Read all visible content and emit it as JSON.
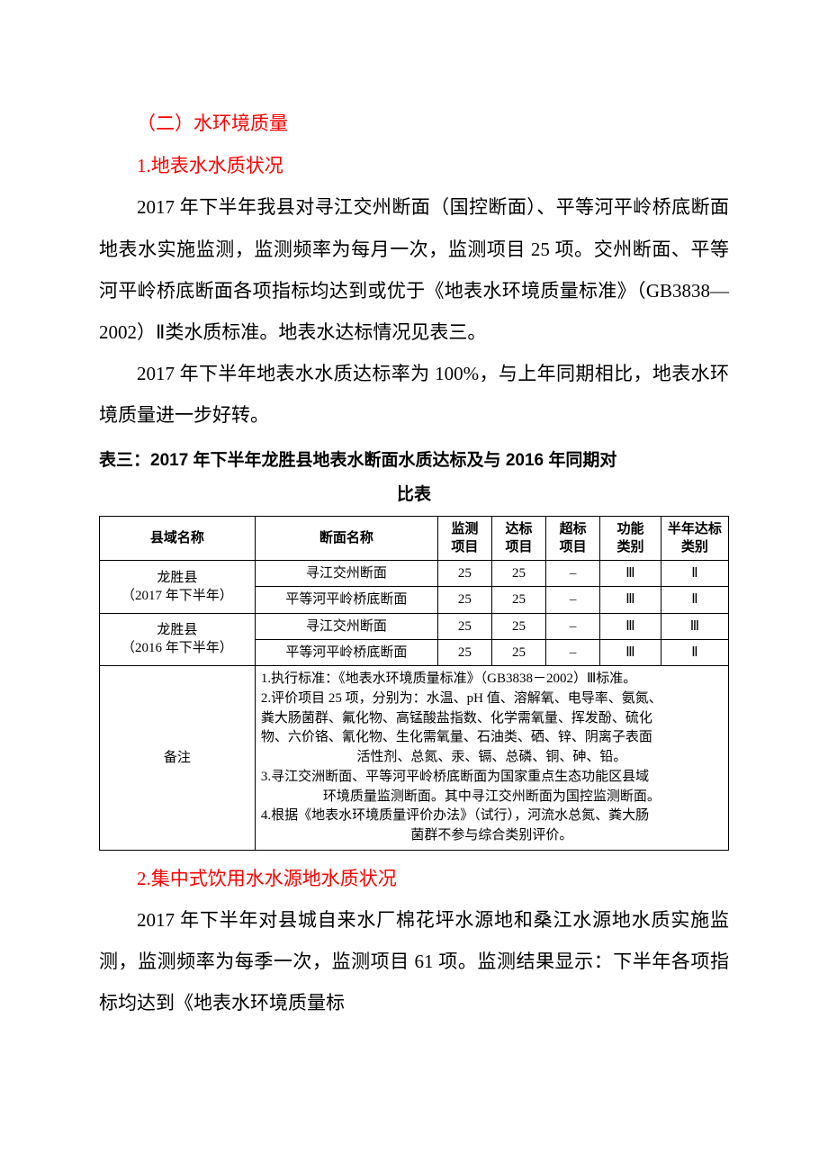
{
  "colors": {
    "heading": "#ff0000",
    "body": "#000000",
    "border": "#000000",
    "background": "#ffffff"
  },
  "typography": {
    "body_fontsize_pt": 16,
    "table_fontsize_pt": 11,
    "title_fontsize_pt": 14,
    "heading_font": "SimHei",
    "body_font": "SimSun"
  },
  "section2": {
    "title": "（二）水环境质量",
    "sub1_title": "1.地表水水质状况",
    "para1": "2017 年下半年我县对寻江交州断面（国控断面）、平等河平岭桥底断面地表水实施监测，监测频率为每月一次，监测项目 25 项。交州断面、平等河平岭桥底断面各项指标均达到或优于《地表水环境质量标准》（GB3838—2002）Ⅱ类水质标准。地表水达标情况见表三。",
    "para2": "2017 年下半年地表水水质达标率为 100%，与上年同期相比，地表水环境质量进一步好转。",
    "sub2_title": "2.集中式饮用水水源地水质状况",
    "para3": "2017 年下半年对县城自来水厂棉花坪水源地和桑江水源地水质实施监测，监测频率为每季一次，监测项目 61 项。监测结果显示：下半年各项指标均达到《地表水环境质量标"
  },
  "table3": {
    "title_line1": "表三：2017 年下半年龙胜县地表水断面水质达标及与 2016 年同期对",
    "title_line2": "比表",
    "headers": {
      "region": "县域名称",
      "section": "断面名称",
      "monitor_line1": "监测",
      "monitor_line2": "项目",
      "meet_line1": "达标",
      "meet_line2": "项目",
      "exceed_line1": "超标",
      "exceed_line2": "项目",
      "func_line1": "功能",
      "func_line2": "类别",
      "halfyear_line1": "半年达标",
      "halfyear_line2": "类别"
    },
    "groups": [
      {
        "region_line1": "龙胜县",
        "region_line2": "（2017 年下半年）",
        "rows": [
          {
            "section": "寻江交州断面",
            "monitor": "25",
            "meet": "25",
            "exceed": "–",
            "func": "Ⅲ",
            "half": "Ⅱ"
          },
          {
            "section": "平等河平岭桥底断面",
            "monitor": "25",
            "meet": "25",
            "exceed": "–",
            "func": "Ⅲ",
            "half": "Ⅱ"
          }
        ]
      },
      {
        "region_line1": "龙胜县",
        "region_line2": "（2016 年下半年）",
        "rows": [
          {
            "section": "寻江交州断面",
            "monitor": "25",
            "meet": "25",
            "exceed": "–",
            "func": "Ⅲ",
            "half": "Ⅲ"
          },
          {
            "section": "平等河平岭桥底断面",
            "monitor": "25",
            "meet": "25",
            "exceed": "–",
            "func": "Ⅲ",
            "half": "Ⅱ"
          }
        ]
      }
    ],
    "notes_label": "备注",
    "notes": {
      "n1": "1.执行标准：《地表水环境质量标准》（GB3838－2002）Ⅲ标准。",
      "n2a": "2.评价项目 25 项，分别为：水温、pH 值、溶解氧、电导率、氨氮、",
      "n2b": "粪大肠菌群、氟化物、高锰酸盐指数、化学需氧量、挥发酚、硫化",
      "n2c": "物、六价铬、氰化物、生化需氧量、石油类、硒、锌、阴离子表面",
      "n2d": "活性剂、总氮、汞、镉、总磷、铜、砷、铅。",
      "n3a": "3.寻江交洲断面、平等河平岭桥底断面为国家重点生态功能区县域",
      "n3b": "环境质量监测断面。其中寻江交州断面为国控监测断面。",
      "n4a": "4.根据《地表水环境质量评价办法》（试行），河流水总氮、粪大肠",
      "n4b": "菌群不参与综合类别评价。"
    }
  }
}
